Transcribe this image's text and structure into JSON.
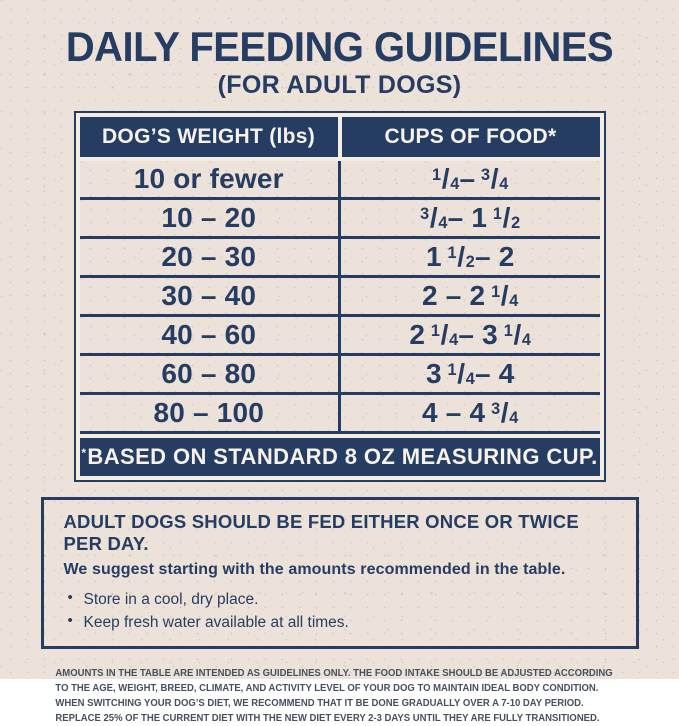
{
  "page": {
    "title": "DAILY FEEDING GUIDELINES",
    "subtitle": "(FOR ADULT DOGS)"
  },
  "table": {
    "headers": [
      "DOG’S WEIGHT (lbs)",
      "CUPS OF FOOD*"
    ],
    "rows": [
      {
        "weight": "10 or fewer",
        "cups": "1/4 – 3/4"
      },
      {
        "weight": "10 – 20",
        "cups": "3/4 – 1 1/2"
      },
      {
        "weight": "20 – 30",
        "cups": "1 1/2 – 2"
      },
      {
        "weight": "30 – 40",
        "cups": "2 – 2 1/4"
      },
      {
        "weight": "40 – 60",
        "cups": "2 1/4 – 3 1/4"
      },
      {
        "weight": "60 – 80",
        "cups": "3 1/4 – 4"
      },
      {
        "weight": "80 – 100",
        "cups": "4 – 4 3/4"
      }
    ],
    "footnote": "*BASED ON STANDARD 8 OZ MEASURING CUP."
  },
  "advice": {
    "heading": "ADULT DOGS SHOULD BE FED EITHER ONCE OR TWICE PER DAY.",
    "subheading": "We suggest starting with the amounts recommended in the table.",
    "bullets": [
      "Store in a cool, dry place.",
      "Keep fresh water available at all times."
    ]
  },
  "fine_print": "AMOUNTS IN THE TABLE ARE INTENDED AS GUIDELINES ONLY. THE FOOD INTAKE SHOULD BE ADJUSTED ACCORDING TO THE AGE, WEIGHT, BREED, CLIMATE, AND ACTIVITY LEVEL OF YOUR DOG TO MAINTAIN IDEAL BODY CONDITION. WHEN SWITCHING YOUR DOG’S DIET, WE RECOMMEND THAT IT BE DONE GRADUALLY OVER A 7-10 DAY PERIOD. REPLACE 25% OF THE CURRENT DIET WITH THE NEW DIET EVERY 2-3 DAYS UNTIL THEY ARE FULLY TRANSITIONED.",
  "colors": {
    "navy": "#263D63",
    "background": "#ECE2D9",
    "panel_cream": "#F3EDE4",
    "text_light": "#F6F1E9",
    "fine_print_ink": "#47505F"
  }
}
